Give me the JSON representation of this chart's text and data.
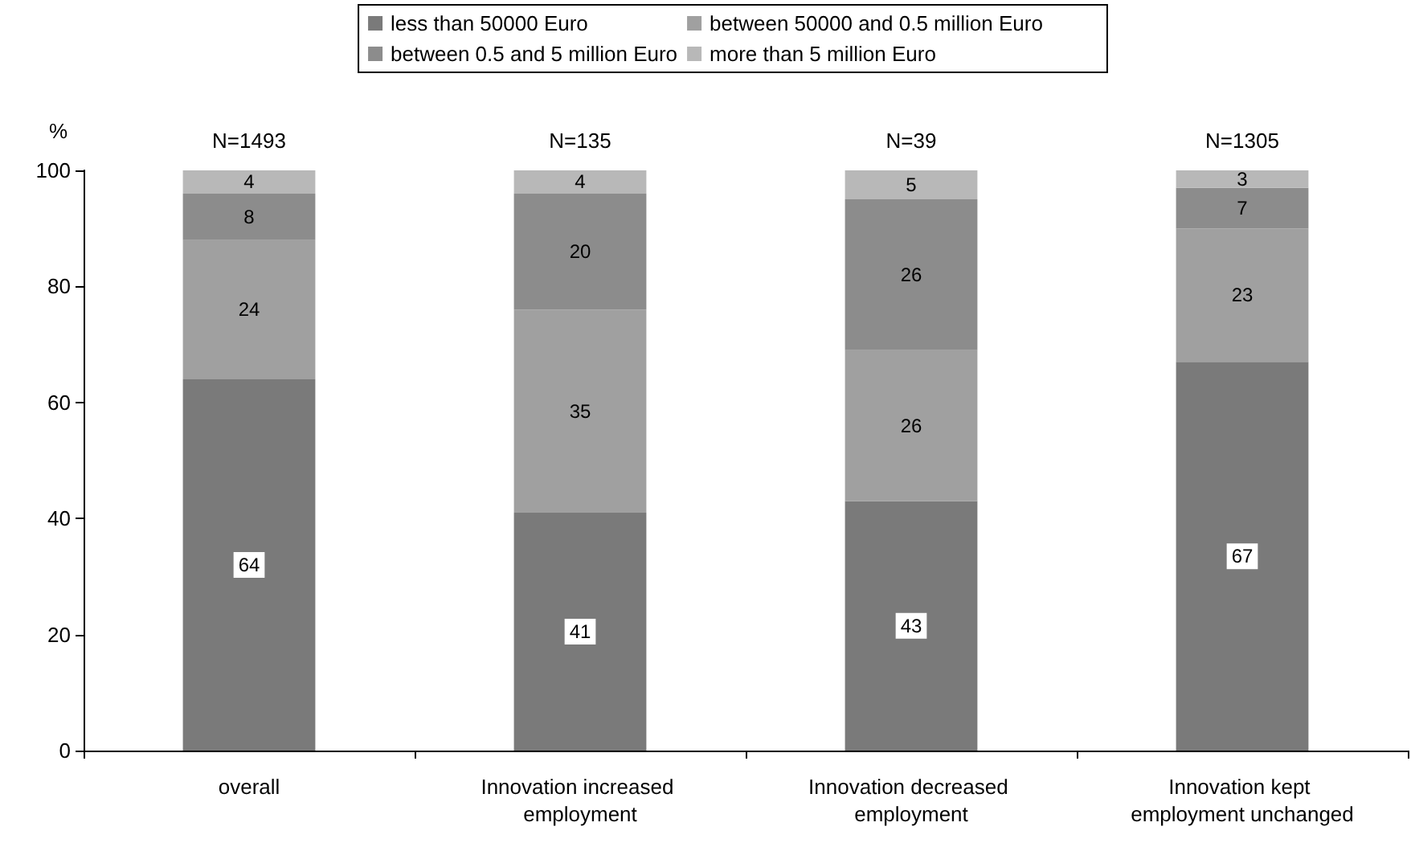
{
  "chart_data": {
    "type": "bar",
    "stacked": true,
    "ylabel": "%",
    "categories": [
      "overall",
      "Innovation increased employment",
      "Innovation decreased employment",
      "Innovation kept employment unchanged"
    ],
    "series": [
      {
        "name": "less than 50000 Euro",
        "color": "#7a7a7a",
        "values": [
          64,
          41,
          43,
          67
        ]
      },
      {
        "name": "between 50000 and 0.5 million Euro",
        "color": "#a0a0a0",
        "values": [
          24,
          35,
          26,
          23
        ]
      },
      {
        "name": "between 0.5 and 5 million Euro",
        "color": "#8c8c8c",
        "values": [
          8,
          20,
          26,
          7
        ]
      },
      {
        "name": "more than 5 million Euro",
        "color": "#b8b8b8",
        "values": [
          4,
          4,
          5,
          3
        ]
      }
    ],
    "ylim": [
      0,
      100
    ],
    "yticks": [
      0,
      20,
      40,
      60,
      80,
      100
    ],
    "grid": false,
    "legend": "top",
    "data_labels": true,
    "annotations": [
      {
        "text": "N=1493",
        "x": "overall",
        "y": 100
      },
      {
        "text": "N=135",
        "x": "Innovation increased employment",
        "y": 100
      },
      {
        "text": "N=39",
        "x": "Innovation decreased employment",
        "y": 100
      },
      {
        "text": "N=1305",
        "x": "Innovation kept employment unchanged",
        "y": 100
      }
    ]
  }
}
